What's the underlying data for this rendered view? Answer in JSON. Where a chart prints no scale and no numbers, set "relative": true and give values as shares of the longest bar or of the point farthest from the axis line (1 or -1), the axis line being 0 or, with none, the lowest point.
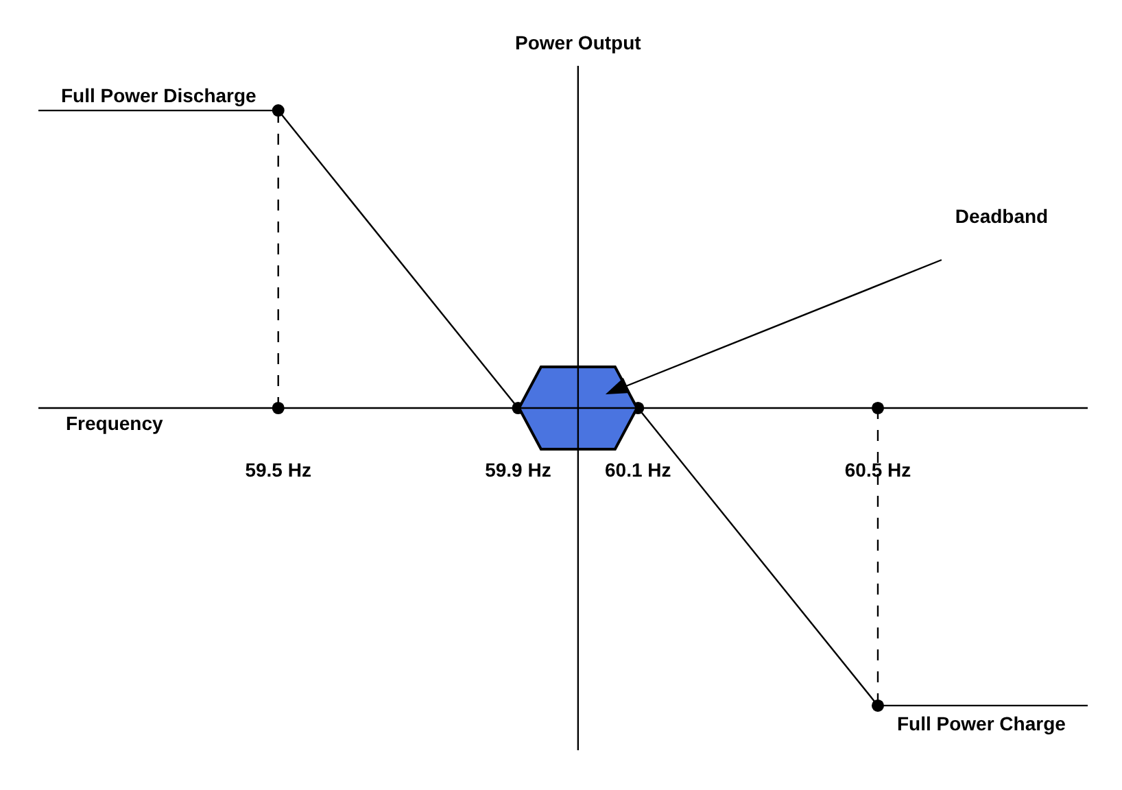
{
  "chart_data": {
    "type": "line",
    "relative": true,
    "xlabel": "Frequency",
    "ylabel": "Power Output",
    "xlim": [
      59.1,
      60.85
    ],
    "xticks": [
      {
        "value": 59.5,
        "label": "59.5 Hz"
      },
      {
        "value": 59.9,
        "label": "59.9 Hz"
      },
      {
        "value": 60.1,
        "label": "60.1 Hz"
      },
      {
        "value": 60.5,
        "label": "60.5 Hz"
      }
    ],
    "series": [
      {
        "color": "#000000",
        "x": [
          59.1,
          59.5,
          59.9,
          60.1,
          60.5,
          60.85
        ],
        "values": [
          1,
          1,
          0,
          0,
          -1,
          -1
        ],
        "marker": "none",
        "line_style": "solid"
      },
      {
        "color": "#000000",
        "x": [
          59.5,
          59.5
        ],
        "values": [
          0,
          1
        ],
        "marker": "none",
        "line_style": "dashed"
      },
      {
        "color": "#000000",
        "x": [
          60.5,
          60.5
        ],
        "values": [
          0,
          -1
        ],
        "marker": "none",
        "line_style": "dashed"
      },
      {
        "type": "scatter",
        "color": "#000000",
        "x": [
          59.5,
          59.5,
          59.9,
          60.1,
          60.5,
          60.5
        ],
        "values": [
          1,
          0,
          0,
          0,
          0,
          -1
        ],
        "marker": "circle"
      }
    ],
    "ref_lines": [
      {
        "axis": "x",
        "value": 60,
        "color": "#000000"
      },
      {
        "axis": "y",
        "value": 0,
        "color": "#000000"
      }
    ],
    "annotations": [
      {
        "text": "Full Power Discharge",
        "x": 59.5,
        "y": 1
      },
      {
        "text": "Full Power Charge",
        "x": 60.5,
        "y": -1
      },
      "Deadband"
    ],
    "grid": false
  }
}
